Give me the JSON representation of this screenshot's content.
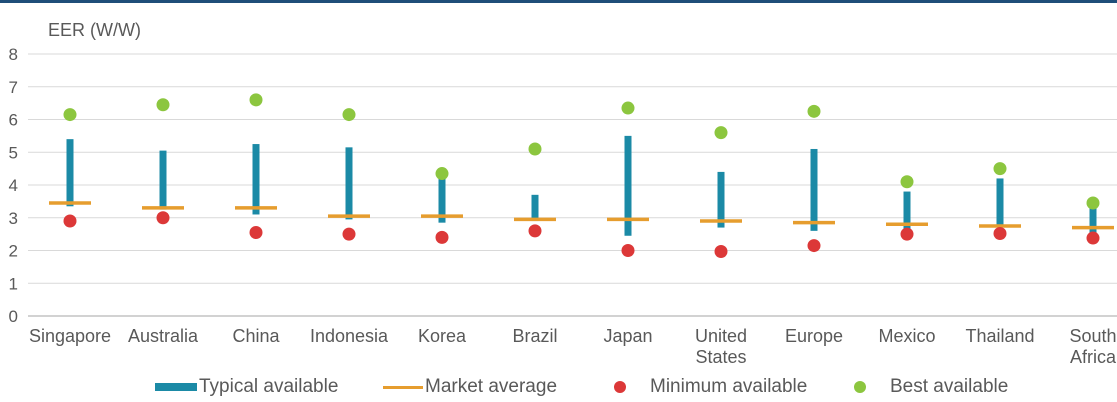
{
  "chart_data": {
    "type": "range-dot",
    "ylabel": "EER (W/W)",
    "ylim": [
      0,
      8
    ],
    "yticks": [
      "0",
      "1",
      "2",
      "3",
      "4",
      "5",
      "6",
      "7",
      "8"
    ],
    "grid": true,
    "legend_position": "bottom",
    "categories": [
      "Singapore",
      "Australia",
      "China",
      "Indonesia",
      "Korea",
      "Brazil",
      "Japan",
      "United States",
      "Europe",
      "Mexico",
      "Thailand",
      "South Africa"
    ],
    "category_lines": [
      [
        "Singapore"
      ],
      [
        "Australia"
      ],
      [
        "China"
      ],
      [
        "Indonesia"
      ],
      [
        "Korea"
      ],
      [
        "Brazil"
      ],
      [
        "Japan"
      ],
      [
        "United",
        "States"
      ],
      [
        "Europe"
      ],
      [
        "Mexico"
      ],
      [
        "Thailand"
      ],
      [
        "South",
        "Africa"
      ]
    ],
    "series": [
      {
        "name": "Typical available",
        "kind": "range",
        "color": "#1b8aa6",
        "low": [
          3.35,
          3.25,
          3.1,
          2.95,
          2.85,
          2.9,
          2.45,
          2.7,
          2.6,
          2.6,
          2.7,
          2.55
        ],
        "high": [
          5.4,
          5.05,
          5.25,
          5.15,
          4.2,
          3.7,
          5.5,
          4.4,
          5.1,
          3.8,
          4.2,
          3.3
        ]
      },
      {
        "name": "Market average",
        "kind": "line",
        "color": "#e69d2e",
        "values": [
          3.45,
          3.3,
          3.3,
          3.05,
          3.05,
          2.95,
          2.95,
          2.9,
          2.85,
          2.8,
          2.75,
          2.7
        ]
      },
      {
        "name": "Minimum available",
        "kind": "dot",
        "color": "#dc3838",
        "values": [
          2.9,
          3.0,
          2.55,
          2.5,
          2.4,
          2.6,
          2.0,
          1.97,
          2.15,
          2.5,
          2.52,
          2.38
        ]
      },
      {
        "name": "Best available",
        "kind": "dot",
        "color": "#8cc63f",
        "values": [
          6.15,
          6.45,
          6.6,
          6.15,
          4.35,
          5.1,
          6.35,
          5.6,
          6.25,
          4.1,
          4.5,
          3.45
        ]
      }
    ]
  }
}
